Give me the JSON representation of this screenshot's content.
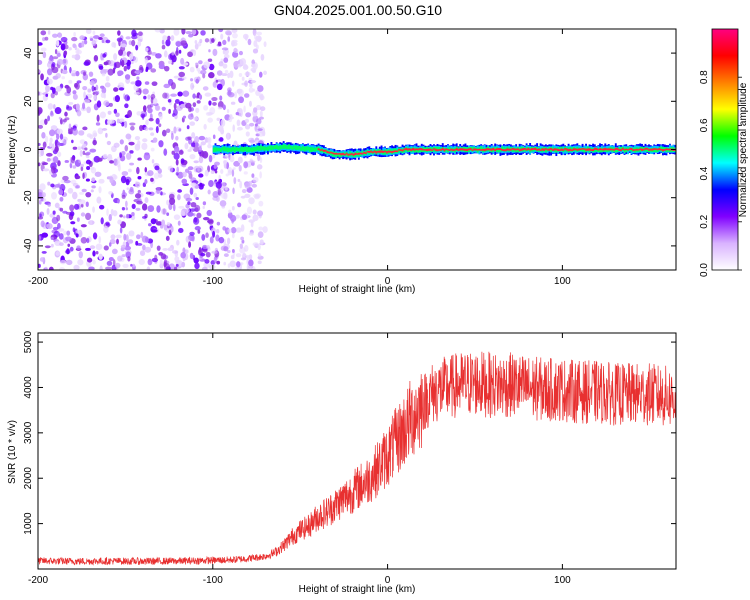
{
  "title": "GN04.2025.001.00.50.G10",
  "chart_data": [
    {
      "type": "heatmap",
      "xlabel": "Height of straight line (km)",
      "ylabel": "Frequency (Hz)",
      "xlim": [
        -200,
        165
      ],
      "ylim": [
        -50,
        50
      ],
      "x_ticks": [
        -200,
        -100,
        0,
        100
      ],
      "y_ticks": [
        -40,
        -20,
        0,
        20,
        40
      ],
      "colorbar": {
        "label": "Normalized spectral amplitude",
        "range": [
          0,
          1
        ],
        "ticks": [
          "0.0",
          "0.2",
          "0.4",
          "0.6",
          "0.8"
        ],
        "colors": [
          "#ffffff",
          "#d9b3ff",
          "#8000ff",
          "#0000ff",
          "#00ffff",
          "#00ff00",
          "#ffff00",
          "#ff8000",
          "#ff0000",
          "#ff0080"
        ]
      },
      "noise_region_x": [
        -200,
        -80
      ],
      "signal_line": {
        "x": [
          -100,
          -90,
          -80,
          -70,
          -60,
          -50,
          -40,
          -30,
          -20,
          -10,
          0,
          10,
          20,
          40,
          60,
          80,
          100,
          120,
          140,
          165
        ],
        "frequency": [
          0,
          0,
          0,
          0.5,
          1,
          0.5,
          0,
          -2,
          -2,
          -1,
          -1,
          0,
          0,
          0,
          0,
          0,
          0,
          0,
          0,
          0
        ]
      },
      "grid": false
    },
    {
      "type": "line",
      "xlabel": "Height of straight line (km)",
      "ylabel": "SNR (10 * v/v)",
      "xlim": [
        -200,
        165
      ],
      "ylim": [
        0,
        5200
      ],
      "x_ticks": [
        -200,
        -100,
        0,
        100
      ],
      "y_ticks": [
        1000,
        2000,
        3000,
        4000,
        5000
      ],
      "line_color": "#e83030",
      "series": [
        {
          "x": [
            -200,
            -180,
            -160,
            -140,
            -120,
            -100,
            -90,
            -80,
            -70,
            -65,
            -60,
            -55,
            -50,
            -45,
            -40,
            -35,
            -30,
            -25,
            -20,
            -15,
            -10,
            -5,
            0,
            5,
            10,
            15,
            20,
            25,
            30,
            40,
            50,
            60,
            70,
            80,
            90,
            100,
            110,
            120,
            130,
            140,
            150,
            160,
            165
          ],
          "values": [
            180,
            170,
            175,
            170,
            175,
            190,
            200,
            230,
            280,
            350,
            500,
            700,
            850,
            950,
            1150,
            1250,
            1400,
            1550,
            1700,
            1850,
            2000,
            2250,
            2500,
            2800,
            3100,
            3400,
            3650,
            3850,
            3950,
            4050,
            4100,
            4050,
            4050,
            4000,
            3950,
            3950,
            3900,
            3900,
            3850,
            3850,
            3850,
            3800,
            3750
          ]
        }
      ],
      "grid": false
    }
  ]
}
